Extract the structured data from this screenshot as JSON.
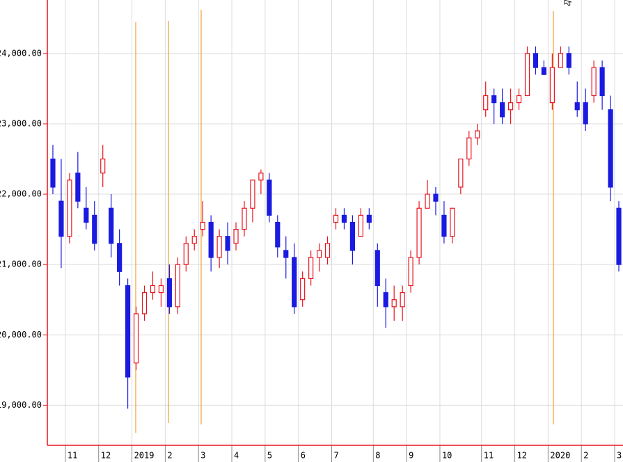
{
  "chart_data": {
    "type": "candlestick",
    "categories": [
      null,
      null,
      "11",
      null,
      null,
      null,
      "12",
      null,
      null,
      null,
      "2019",
      null,
      null,
      null,
      "2",
      null,
      null,
      null,
      "3",
      null,
      null,
      null,
      "4",
      null,
      null,
      null,
      "5",
      null,
      null,
      null,
      "6",
      null,
      null,
      null,
      "7",
      null,
      null,
      null,
      null,
      "8",
      null,
      null,
      null,
      "9",
      null,
      null,
      null,
      "10",
      null,
      null,
      null,
      null,
      "11",
      null,
      null,
      null,
      "12",
      null,
      null,
      null,
      "2020",
      null,
      null,
      null,
      "2",
      null,
      null,
      null,
      "3"
    ],
    "open": [
      22500,
      21900,
      21400,
      22300,
      21800,
      21700,
      22300,
      21800,
      21300,
      20700,
      19600,
      20300,
      20600,
      20600,
      20800,
      20400,
      21000,
      21300,
      21500,
      21600,
      21100,
      21400,
      21300,
      21500,
      21800,
      22200,
      22200,
      21600,
      21200,
      21100,
      20500,
      20800,
      21100,
      21100,
      21600,
      21700,
      21600,
      21400,
      21700,
      21200,
      20600,
      20400,
      20400,
      20700,
      21100,
      21800,
      22000,
      21700,
      21400,
      22100,
      22500,
      22800,
      23200,
      23400,
      23300,
      23200,
      23300,
      23400,
      24000,
      23800,
      23300,
      23800,
      24000,
      23300,
      23300,
      23400,
      23800,
      23200,
      21800
    ],
    "high": [
      22700,
      22500,
      22300,
      22600,
      22100,
      21900,
      22700,
      22000,
      21500,
      20800,
      20400,
      20700,
      20900,
      20800,
      21000,
      21100,
      21400,
      21500,
      21900,
      21700,
      21500,
      21600,
      21600,
      21900,
      22200,
      22350,
      22300,
      21700,
      21400,
      21300,
      20900,
      21200,
      21300,
      21400,
      21800,
      21800,
      21700,
      21800,
      21800,
      21300,
      20800,
      20700,
      20700,
      21200,
      21900,
      22200,
      22100,
      21900,
      21800,
      22500,
      22900,
      23000,
      23600,
      23500,
      23500,
      23500,
      23500,
      24100,
      24100,
      23900,
      24000,
      24100,
      24100,
      23600,
      23500,
      23900,
      23900,
      23400,
      21900
    ],
    "low": [
      22000,
      20950,
      21300,
      21800,
      21500,
      21200,
      22100,
      21100,
      20700,
      18950,
      19500,
      20200,
      20500,
      20400,
      20300,
      20300,
      20900,
      21200,
      21400,
      20900,
      20950,
      21000,
      21200,
      21400,
      21600,
      22000,
      21600,
      21100,
      20800,
      20300,
      20400,
      20700,
      20900,
      21000,
      21500,
      21500,
      21000,
      21400,
      21500,
      20400,
      20100,
      20200,
      20200,
      20600,
      21000,
      21800,
      21700,
      21300,
      21300,
      22000,
      22400,
      22700,
      23100,
      23000,
      23000,
      23000,
      23200,
      23400,
      23700,
      23700,
      23200,
      23800,
      23700,
      23100,
      22900,
      23300,
      23200,
      21900,
      20900
    ],
    "close": [
      22100,
      21400,
      22200,
      21900,
      21600,
      21300,
      22500,
      21300,
      20900,
      19400,
      20300,
      20600,
      20700,
      20700,
      20400,
      21000,
      21300,
      21400,
      21600,
      21100,
      21400,
      21200,
      21500,
      21800,
      22200,
      22300,
      21700,
      21250,
      21100,
      20400,
      20800,
      21100,
      21200,
      21300,
      21700,
      21600,
      21200,
      21700,
      21600,
      20700,
      20400,
      20500,
      20600,
      21100,
      21800,
      22000,
      21900,
      21400,
      21800,
      22500,
      22800,
      22900,
      23400,
      23300,
      23100,
      23300,
      23400,
      24000,
      23800,
      23700,
      23800,
      24000,
      23800,
      23200,
      23000,
      23800,
      23400,
      22100,
      21000
    ],
    "up_color": "#e8141e",
    "down_color": "#1a1ae0",
    "ylim": [
      18430,
      24760
    ],
    "yticks": [
      {
        "value": 19000,
        "label": "19,000.00"
      },
      {
        "value": 20000,
        "label": "20,000.00"
      },
      {
        "value": 21000,
        "label": "21,000.00"
      },
      {
        "value": 22000,
        "label": "22,000.00"
      },
      {
        "value": 23000,
        "label": "23,000.00"
      },
      {
        "value": 24000,
        "label": "24,000.00"
      }
    ],
    "grid": true
  }
}
